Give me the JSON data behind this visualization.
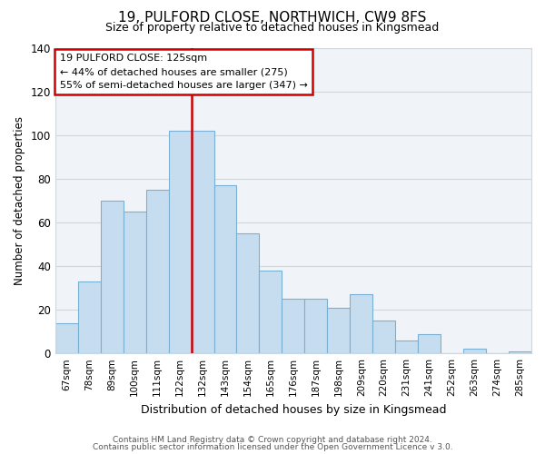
{
  "title": "19, PULFORD CLOSE, NORTHWICH, CW9 8FS",
  "subtitle": "Size of property relative to detached houses in Kingsmead",
  "xlabel": "Distribution of detached houses by size in Kingsmead",
  "ylabel": "Number of detached properties",
  "footer1": "Contains HM Land Registry data © Crown copyright and database right 2024.",
  "footer2": "Contains public sector information licensed under the Open Government Licence v 3.0.",
  "bar_labels": [
    "67sqm",
    "78sqm",
    "89sqm",
    "100sqm",
    "111sqm",
    "122sqm",
    "132sqm",
    "143sqm",
    "154sqm",
    "165sqm",
    "176sqm",
    "187sqm",
    "198sqm",
    "209sqm",
    "220sqm",
    "231sqm",
    "241sqm",
    "252sqm",
    "263sqm",
    "274sqm",
    "285sqm"
  ],
  "bar_heights": [
    14,
    33,
    70,
    65,
    75,
    102,
    102,
    77,
    55,
    38,
    25,
    25,
    21,
    27,
    15,
    6,
    9,
    0,
    2,
    0,
    1
  ],
  "bar_color": "#c6ddf0",
  "bar_edge_color": "#7aafd4",
  "red_line_bar_index": 6,
  "highlight_color": "#cc0000",
  "annotation_title": "19 PULFORD CLOSE: 125sqm",
  "annotation_line1": "← 44% of detached houses are smaller (275)",
  "annotation_line2": "55% of semi-detached houses are larger (347) →",
  "annotation_box_color": "#ffffff",
  "annotation_box_edge": "#cc0000",
  "ylim": [
    0,
    140
  ],
  "yticks": [
    0,
    20,
    40,
    60,
    80,
    100,
    120,
    140
  ],
  "grid_color": "#c8d8e8",
  "title_fontsize": 11,
  "subtitle_fontsize": 9
}
